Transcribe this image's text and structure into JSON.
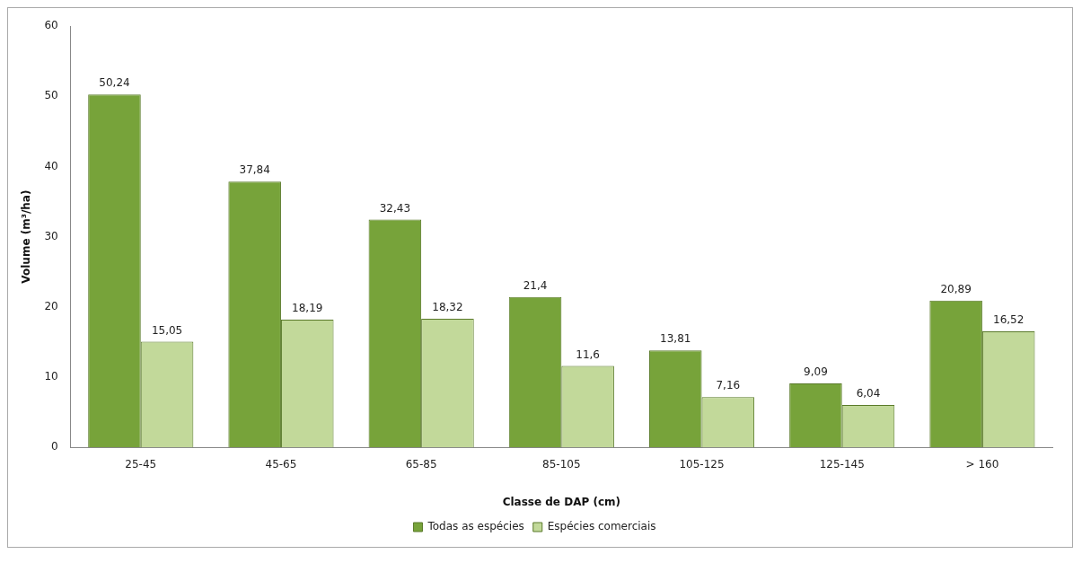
{
  "chart_data": {
    "type": "bar",
    "xlabel": "Classe de DAP (cm)",
    "ylabel": "Volume (m³/ha)",
    "categories": [
      "25-45",
      "45-65",
      "65-85",
      "85-105",
      "105-125",
      "125-145",
      "> 160"
    ],
    "series": [
      {
        "name": "Todas as espécies",
        "color": "#77a33a",
        "values": [
          50.24,
          37.84,
          32.43,
          21.4,
          13.81,
          9.09,
          20.89
        ],
        "value_labels": [
          "50,24",
          "37,84",
          "32,43",
          "21,4",
          "13,81",
          "9,09",
          "20,89"
        ]
      },
      {
        "name": "Espécies comerciais",
        "color": "#c2d99a",
        "values": [
          15.05,
          18.19,
          18.32,
          11.6,
          7.16,
          6.04,
          16.52
        ],
        "value_labels": [
          "15,05",
          "18,19",
          "18,32",
          "11,6",
          "7,16",
          "6,04",
          "16,52"
        ]
      }
    ],
    "ylim": [
      0,
      60
    ],
    "yticks": [
      0,
      10,
      20,
      30,
      40,
      50,
      60
    ],
    "grid": false,
    "legend": "bottom"
  }
}
